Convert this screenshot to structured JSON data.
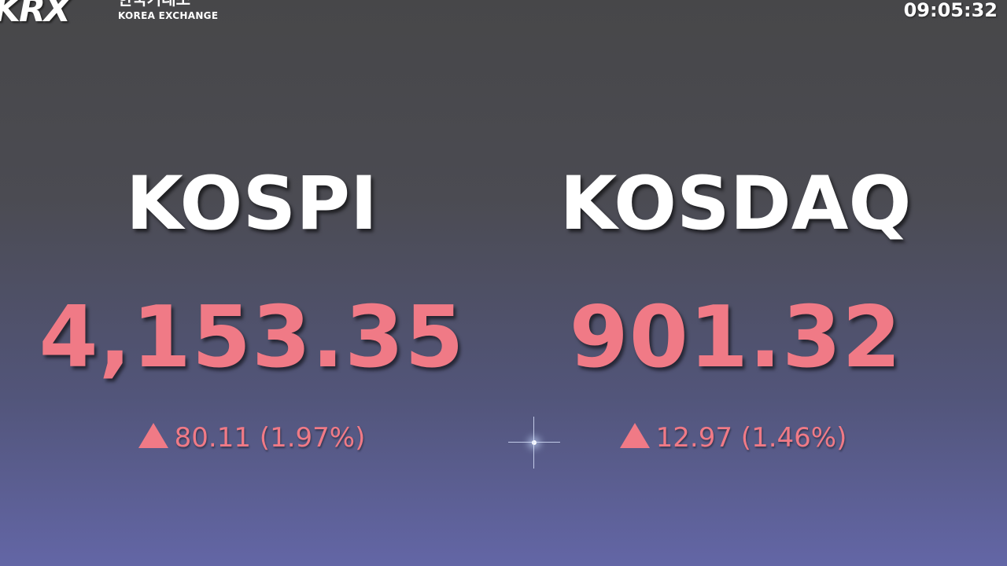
{
  "header": {
    "logo": "KRX",
    "logo_korean": "한국거래소",
    "logo_english": "KOREA EXCHANGE",
    "clock": "09:05:32"
  },
  "indices": [
    {
      "name": "KOSPI",
      "value": "4,153.35",
      "change": "80.11 (1.97%)",
      "direction": "up-triangle-icon"
    },
    {
      "name": "KOSDAQ",
      "value": "901.32",
      "change": "12.97 (1.46%)",
      "direction": "up-triangle-icon"
    }
  ],
  "colors": {
    "up": "#f07a86",
    "label": "#ffffff"
  }
}
